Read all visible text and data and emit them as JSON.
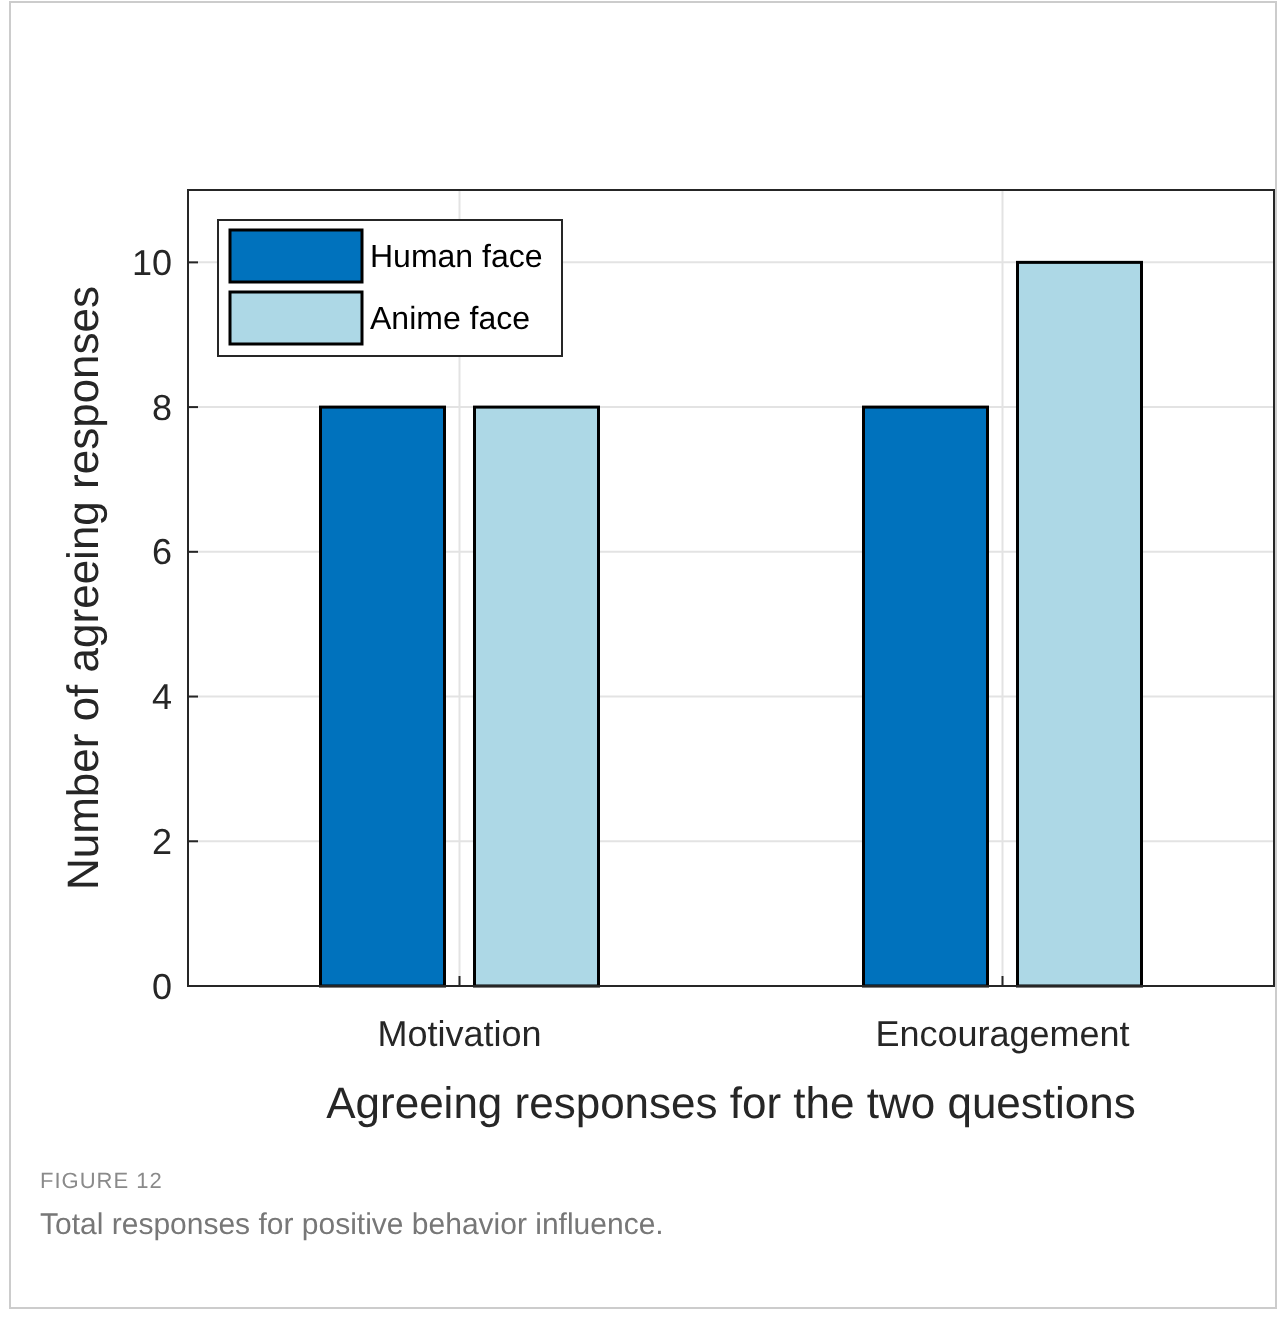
{
  "chart_data": {
    "type": "bar",
    "xlabel": "Agreeing responses for the two questions",
    "ylabel": "Number of agreeing responses",
    "categories": [
      "Motivation",
      "Encouragement"
    ],
    "series": [
      {
        "name": "Human face",
        "color": "#0072bd",
        "values": [
          8,
          8
        ]
      },
      {
        "name": "Anime face",
        "color": "#add8e6",
        "values": [
          8,
          10
        ]
      }
    ],
    "ylim": [
      0,
      11
    ],
    "yticks": [
      0,
      2,
      4,
      6,
      8,
      10
    ],
    "grid": true,
    "legend": "top left",
    "annotations": [
      "FIGURE 12",
      "Total responses for positive behavior influence."
    ]
  }
}
